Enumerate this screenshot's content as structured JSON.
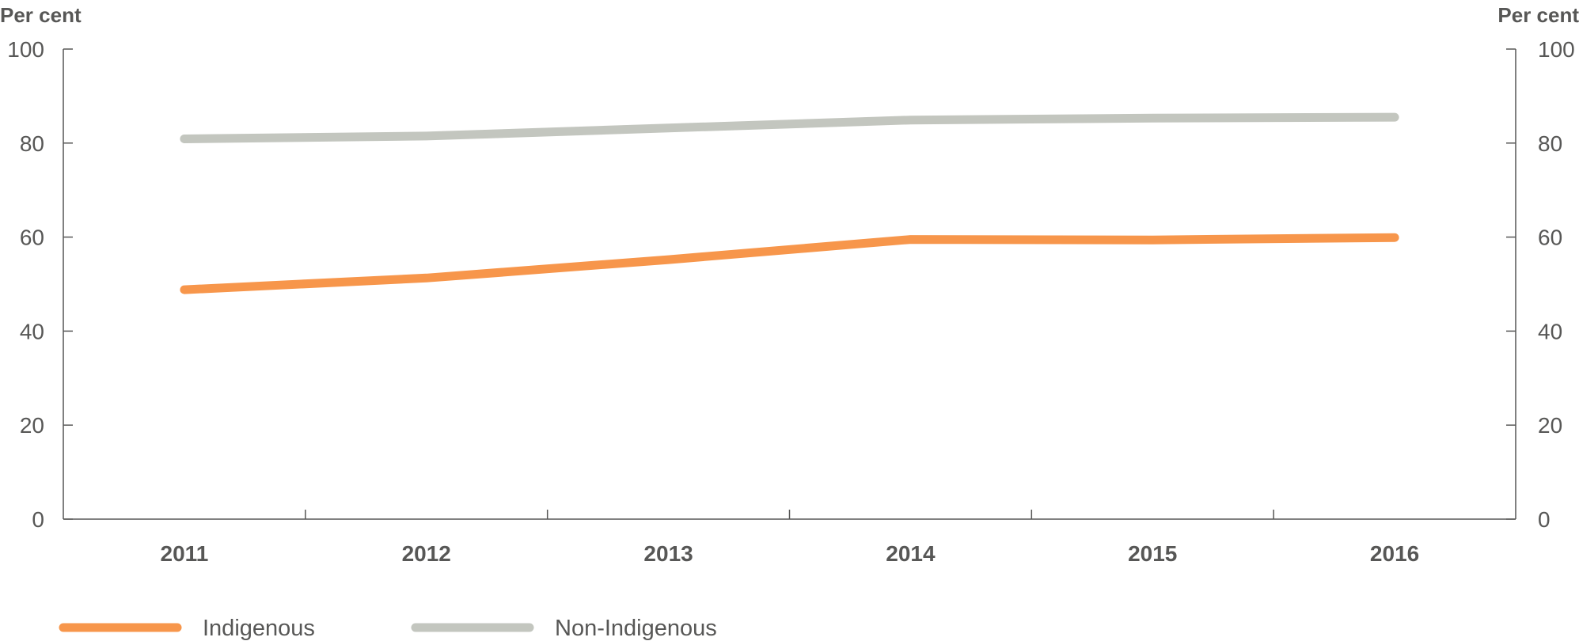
{
  "chart_data": {
    "type": "line",
    "left_axis_label": "Per cent",
    "right_axis_label": "Per cent",
    "categories": [
      "2011",
      "2012",
      "2013",
      "2014",
      "2015",
      "2016"
    ],
    "ylim": [
      0,
      100
    ],
    "yticks": [
      "0",
      "20",
      "40",
      "60",
      "80",
      "100"
    ],
    "grid": false,
    "legend_position": "bottom-left",
    "series": [
      {
        "name": "Indigenous",
        "color": "#F7964B",
        "values": [
          48.8,
          51.3,
          55.2,
          59.5,
          59.4,
          59.9
        ]
      },
      {
        "name": "Non-Indigenous",
        "color": "#C3C6BF",
        "values": [
          80.9,
          81.5,
          83.2,
          84.9,
          85.3,
          85.5
        ]
      }
    ]
  }
}
